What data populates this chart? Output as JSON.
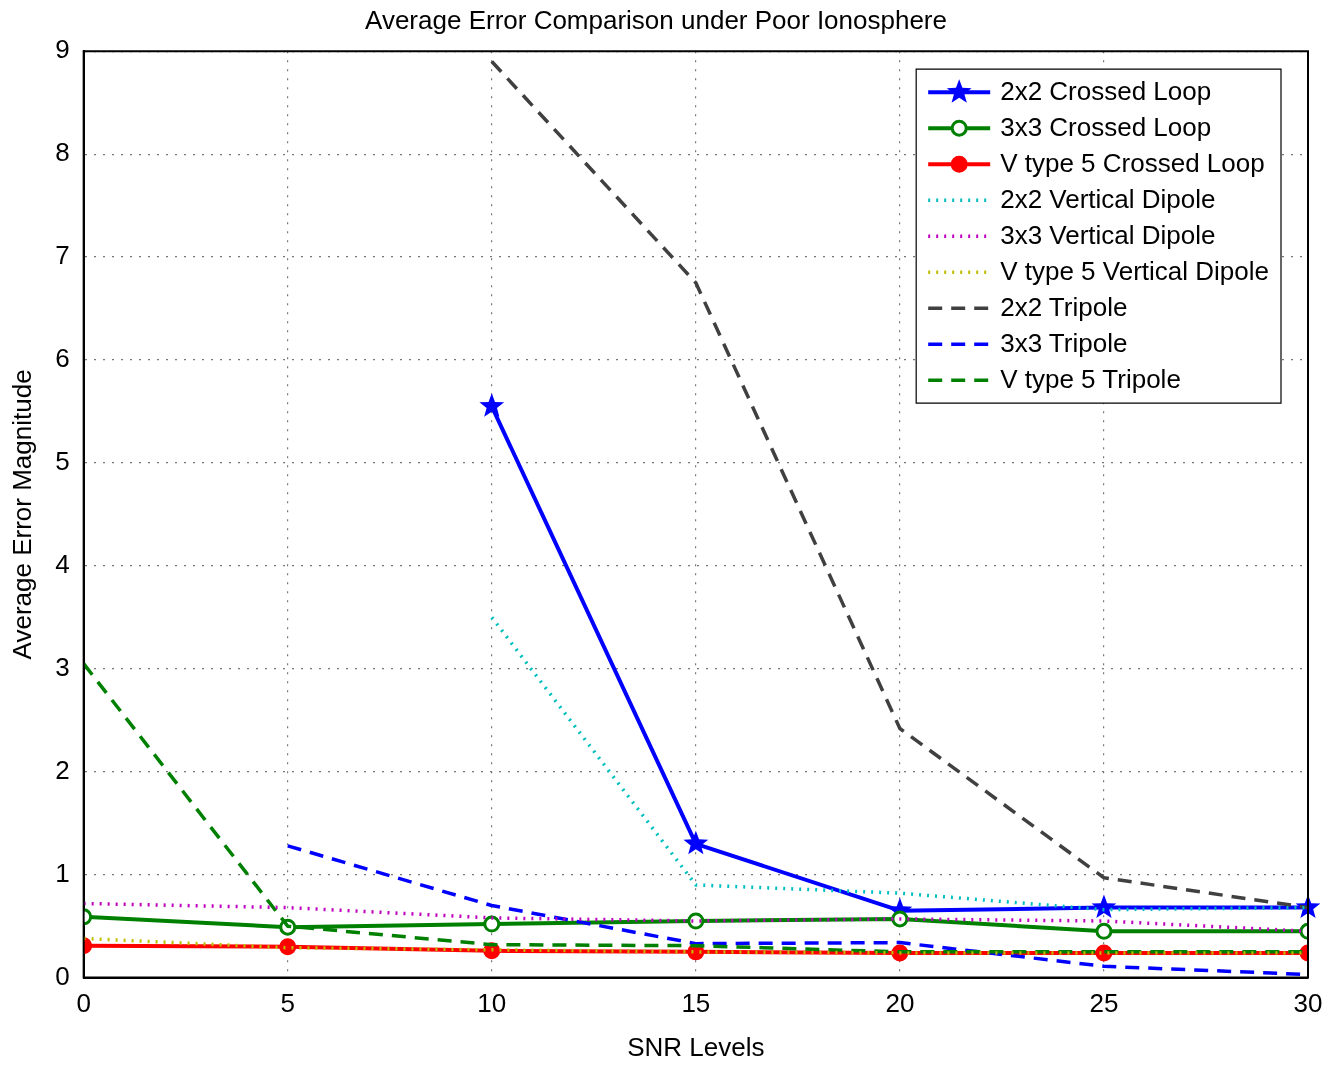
{
  "chart_data": {
    "type": "line",
    "title": "Average Error Comparison under Poor Ionosphere",
    "xlabel": "SNR Levels",
    "ylabel": "Average Error Magnitude",
    "x": [
      0,
      5,
      10,
      15,
      20,
      25,
      30
    ],
    "xlim": [
      0,
      30
    ],
    "xticks": [
      0,
      5,
      10,
      15,
      20,
      25,
      30
    ],
    "ylim": [
      0,
      9
    ],
    "yticks": [
      0,
      1,
      2,
      3,
      4,
      5,
      6,
      7,
      8,
      9
    ],
    "grid": true,
    "legend": "top right",
    "series": [
      {
        "name": "2x2 Crossed Loop",
        "color": "#0000ff",
        "marker": "star",
        "line_style": "solid",
        "values": [
          null,
          null,
          5.55,
          1.3,
          0.65,
          0.68,
          0.68
        ]
      },
      {
        "name": "3x3 Crossed Loop",
        "color": "#008000",
        "marker": "circle",
        "line_style": "solid",
        "values": [
          0.59,
          0.49,
          0.52,
          0.55,
          0.57,
          0.45,
          0.45
        ]
      },
      {
        "name": "V type 5 Crossed Loop",
        "color": "#ff0000",
        "marker": "circle",
        "line_style": "solid",
        "values": [
          0.31,
          0.3,
          0.26,
          0.25,
          0.24,
          0.24,
          0.24
        ]
      },
      {
        "name": "2x2 Vertical Dipole",
        "color": "#00bfbf",
        "marker": "none",
        "line_style": "dotted",
        "values": [
          null,
          null,
          3.5,
          0.9,
          0.82,
          0.66,
          0.68
        ]
      },
      {
        "name": "3x3 Vertical Dipole",
        "color": "#bf00bf",
        "marker": "none",
        "line_style": "dotted",
        "values": [
          0.72,
          0.68,
          0.58,
          0.55,
          0.57,
          0.55,
          0.45
        ]
      },
      {
        "name": "V type 5 Vertical Dipole",
        "color": "#bfbf00",
        "marker": "none",
        "line_style": "dotted",
        "values": [
          0.38,
          0.29,
          0.27,
          0.25,
          0.24,
          0.24,
          0.24
        ]
      },
      {
        "name": "2x2 Tripole",
        "color": "#404040",
        "marker": "none",
        "line_style": "dashed",
        "values": [
          null,
          null,
          8.9,
          6.75,
          2.42,
          0.97,
          0.68
        ]
      },
      {
        "name": "3x3 Tripole",
        "color": "#0000ff",
        "marker": "none",
        "line_style": "dashed",
        "values": [
          null,
          1.28,
          0.7,
          0.33,
          0.34,
          0.11,
          0.03
        ]
      },
      {
        "name": "V type 5 Tripole",
        "color": "#008000",
        "marker": "none",
        "line_style": "dashed",
        "values": [
          3.05,
          0.5,
          0.32,
          0.31,
          0.25,
          0.25,
          0.25
        ]
      }
    ]
  }
}
